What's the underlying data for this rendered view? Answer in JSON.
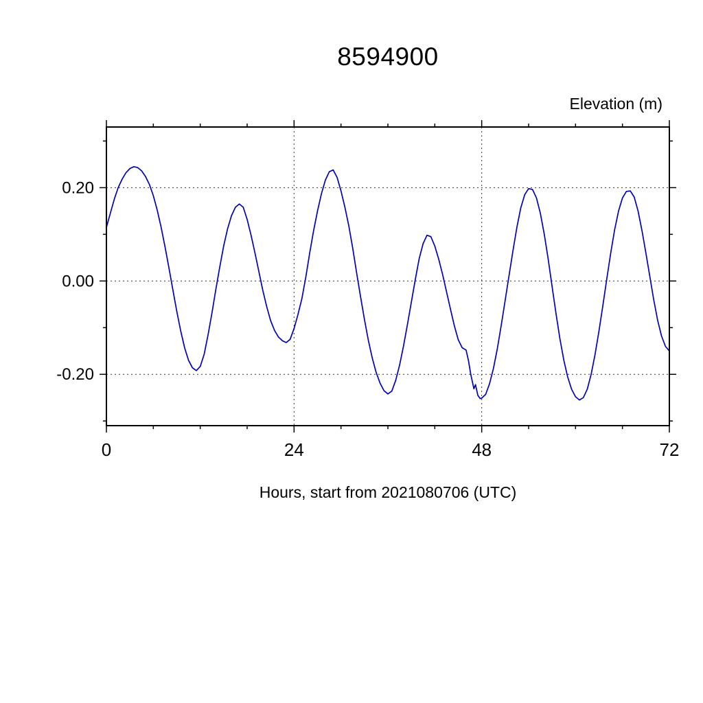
{
  "chart_data": {
    "type": "line",
    "title": "8594900",
    "ylabel": "Elevation (m)",
    "xlabel": "Hours, start from 2021080706 (UTC)",
    "xlim": [
      0,
      72
    ],
    "ylim": [
      -0.31,
      0.33
    ],
    "xticks": [
      {
        "value": 0,
        "label": "0"
      },
      {
        "value": 24,
        "label": "24"
      },
      {
        "value": 48,
        "label": "48"
      },
      {
        "value": 72,
        "label": "72"
      }
    ],
    "yticks": [
      {
        "value": 0.2,
        "label": "0.20"
      },
      {
        "value": 0.0,
        "label": "0.00"
      },
      {
        "value": -0.2,
        "label": "-0.20"
      }
    ],
    "x_minor_ticks": [
      6,
      12,
      18,
      30,
      36,
      42,
      54,
      60,
      66
    ],
    "y_minor_ticks": [
      -0.3,
      -0.1,
      0.1,
      0.3
    ],
    "grid_x": [
      24,
      48
    ],
    "grid_y": [
      -0.2,
      0.0,
      0.2
    ],
    "grid_on": true,
    "legend_position": "none",
    "line_color": "#0000bb",
    "frame_color": "#000000",
    "grid_color": "#333333",
    "series": [
      {
        "name": "elevation",
        "points": [
          [
            0,
            0.115
          ],
          [
            0.5,
            0.145
          ],
          [
            1,
            0.175
          ],
          [
            1.5,
            0.2
          ],
          [
            2,
            0.218
          ],
          [
            2.5,
            0.232
          ],
          [
            3,
            0.241
          ],
          [
            3.5,
            0.245
          ],
          [
            4,
            0.243
          ],
          [
            4.5,
            0.236
          ],
          [
            5,
            0.224
          ],
          [
            5.5,
            0.207
          ],
          [
            6,
            0.183
          ],
          [
            6.5,
            0.152
          ],
          [
            7,
            0.115
          ],
          [
            7.5,
            0.073
          ],
          [
            8,
            0.028
          ],
          [
            8.5,
            -0.019
          ],
          [
            9,
            -0.065
          ],
          [
            9.5,
            -0.107
          ],
          [
            10,
            -0.143
          ],
          [
            10.5,
            -0.17
          ],
          [
            11,
            -0.186
          ],
          [
            11.5,
            -0.192
          ],
          [
            12,
            -0.183
          ],
          [
            12.5,
            -0.157
          ],
          [
            13,
            -0.115
          ],
          [
            13.5,
            -0.068
          ],
          [
            14,
            -0.018
          ],
          [
            14.5,
            0.03
          ],
          [
            15,
            0.075
          ],
          [
            15.5,
            0.112
          ],
          [
            16,
            0.14
          ],
          [
            16.5,
            0.158
          ],
          [
            17,
            0.165
          ],
          [
            17.5,
            0.158
          ],
          [
            18,
            0.132
          ],
          [
            18.5,
            0.098
          ],
          [
            19,
            0.06
          ],
          [
            19.5,
            0.02
          ],
          [
            20,
            -0.02
          ],
          [
            20.5,
            -0.055
          ],
          [
            21,
            -0.085
          ],
          [
            21.5,
            -0.106
          ],
          [
            22,
            -0.12
          ],
          [
            22.5,
            -0.128
          ],
          [
            23,
            -0.132
          ],
          [
            23.5,
            -0.125
          ],
          [
            24,
            -0.102
          ],
          [
            24.5,
            -0.072
          ],
          [
            25,
            -0.038
          ],
          [
            25.5,
            0.008
          ],
          [
            26,
            0.06
          ],
          [
            26.5,
            0.108
          ],
          [
            27,
            0.15
          ],
          [
            27.5,
            0.187
          ],
          [
            28,
            0.216
          ],
          [
            28.5,
            0.234
          ],
          [
            29,
            0.238
          ],
          [
            29.5,
            0.222
          ],
          [
            30,
            0.193
          ],
          [
            30.5,
            0.158
          ],
          [
            31,
            0.118
          ],
          [
            31.5,
            0.07
          ],
          [
            32,
            0.018
          ],
          [
            32.5,
            -0.033
          ],
          [
            33,
            -0.082
          ],
          [
            33.5,
            -0.127
          ],
          [
            34,
            -0.165
          ],
          [
            34.5,
            -0.196
          ],
          [
            35,
            -0.219
          ],
          [
            35.5,
            -0.235
          ],
          [
            36,
            -0.242
          ],
          [
            36.5,
            -0.236
          ],
          [
            37,
            -0.213
          ],
          [
            37.5,
            -0.18
          ],
          [
            38,
            -0.139
          ],
          [
            38.5,
            -0.093
          ],
          [
            39,
            -0.045
          ],
          [
            39.5,
            0.003
          ],
          [
            40,
            0.048
          ],
          [
            40.5,
            0.08
          ],
          [
            41,
            0.098
          ],
          [
            41.5,
            0.095
          ],
          [
            42,
            0.075
          ],
          [
            42.5,
            0.047
          ],
          [
            43,
            0.014
          ],
          [
            43.5,
            -0.023
          ],
          [
            44,
            -0.06
          ],
          [
            44.5,
            -0.096
          ],
          [
            45,
            -0.126
          ],
          [
            45.5,
            -0.143
          ],
          [
            46,
            -0.148
          ],
          [
            46.3,
            -0.17
          ],
          [
            46.6,
            -0.2
          ],
          [
            47,
            -0.231
          ],
          [
            47.2,
            -0.222
          ],
          [
            47.5,
            -0.245
          ],
          [
            47.8,
            -0.252
          ],
          [
            48,
            -0.251
          ],
          [
            48.5,
            -0.243
          ],
          [
            49,
            -0.22
          ],
          [
            49.5,
            -0.187
          ],
          [
            50,
            -0.145
          ],
          [
            50.5,
            -0.095
          ],
          [
            51,
            -0.042
          ],
          [
            51.5,
            0.012
          ],
          [
            52,
            0.065
          ],
          [
            52.5,
            0.115
          ],
          [
            53,
            0.157
          ],
          [
            53.5,
            0.185
          ],
          [
            54,
            0.198
          ],
          [
            54.5,
            0.196
          ],
          [
            55,
            0.178
          ],
          [
            55.5,
            0.145
          ],
          [
            56,
            0.1
          ],
          [
            56.5,
            0.047
          ],
          [
            57,
            -0.012
          ],
          [
            57.5,
            -0.07
          ],
          [
            58,
            -0.124
          ],
          [
            58.5,
            -0.17
          ],
          [
            59,
            -0.206
          ],
          [
            59.5,
            -0.232
          ],
          [
            60,
            -0.248
          ],
          [
            60.5,
            -0.255
          ],
          [
            61,
            -0.25
          ],
          [
            61.5,
            -0.232
          ],
          [
            62,
            -0.2
          ],
          [
            62.5,
            -0.157
          ],
          [
            63,
            -0.107
          ],
          [
            63.5,
            -0.052
          ],
          [
            64,
            0.005
          ],
          [
            64.5,
            0.06
          ],
          [
            65,
            0.11
          ],
          [
            65.5,
            0.15
          ],
          [
            66,
            0.178
          ],
          [
            66.5,
            0.192
          ],
          [
            67,
            0.193
          ],
          [
            67.5,
            0.18
          ],
          [
            68,
            0.15
          ],
          [
            68.5,
            0.108
          ],
          [
            69,
            0.06
          ],
          [
            69.5,
            0.01
          ],
          [
            70,
            -0.04
          ],
          [
            70.5,
            -0.084
          ],
          [
            71,
            -0.118
          ],
          [
            71.5,
            -0.14
          ],
          [
            72,
            -0.15
          ]
        ]
      }
    ]
  }
}
